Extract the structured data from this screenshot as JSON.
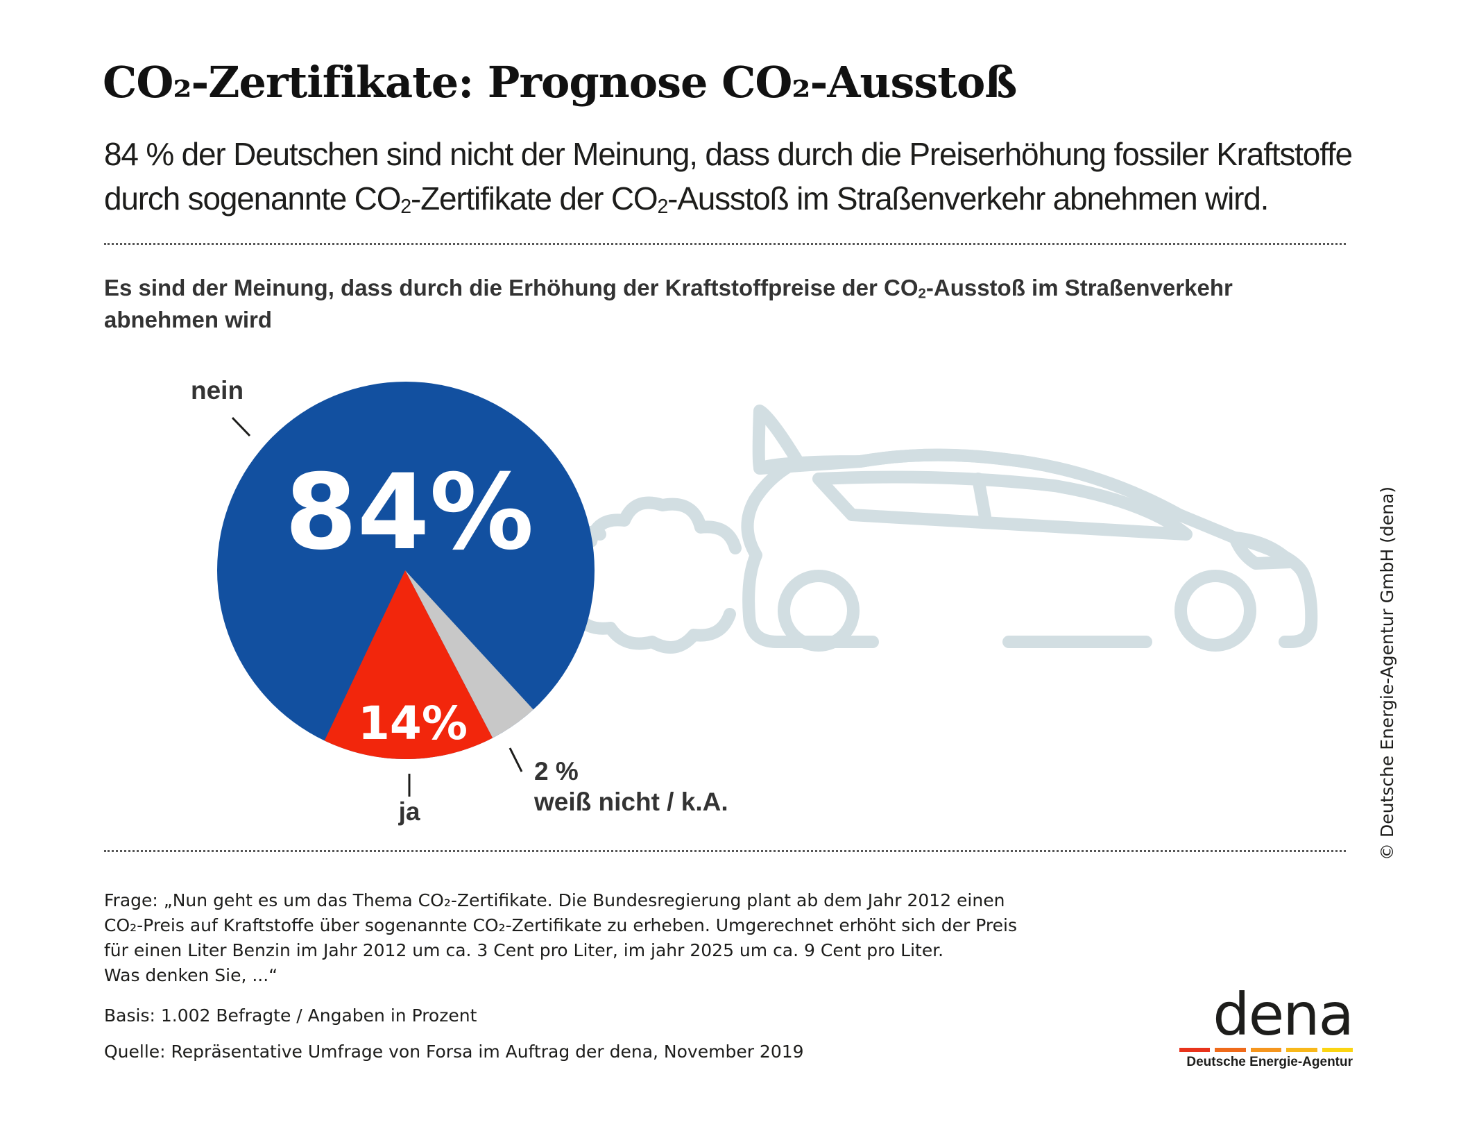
{
  "title": "CO₂-Zertifikate: Prognose CO₂-Ausstoß",
  "subtitle": {
    "part1": "84 % der Deutschen sind nicht der Meinung, dass durch die Preiserhöhung fossiler Kraftstoffe durch sogenannte CO",
    "sub1": "2",
    "part2": "-Zertifikate der CO",
    "sub2": "2",
    "part3": "-Ausstoß im Straßenverkehr abnehmen wird."
  },
  "question": {
    "part1": "Es sind der Meinung, dass durch die Erhöhung der Kraftstoffpreise der CO",
    "sub": "2",
    "part2": "-Ausstoß im Straßenverkehr abnehmen wird"
  },
  "chart_data": {
    "type": "pie",
    "title": "Es sind der Meinung, dass durch die Erhöhung der Kraftstoffpreise der CO2-Ausstoß im Straßenverkehr abnehmen wird",
    "unit": "%",
    "slices": [
      {
        "key": "nein",
        "label": "nein",
        "value": 84,
        "value_label": "84%",
        "color": "#1250a0"
      },
      {
        "key": "ja",
        "label": "ja",
        "value": 14,
        "value_label": "14%",
        "color": "#f2260c"
      },
      {
        "key": "wn",
        "label": "weiß nicht / k.A.",
        "value": 2,
        "value_label": "2 %",
        "color": "#c8c8c8"
      }
    ]
  },
  "colors": {
    "car_outline": "#d2dee2",
    "label_text": "#333333",
    "slice_text": "#ffffff"
  },
  "footer": {
    "question_lines": [
      "Frage: „Nun geht es um das Thema CO₂-Zertifikate. Die Bundesregierung plant ab dem Jahr 2012 einen",
      "CO₂-Preis auf Kraftstoffe über sogenannte CO₂-Zertifikate zu erheben. Umgerechnet erhöht sich der Preis",
      "für einen Liter Benzin im Jahr 2012 um ca. 3 Cent pro Liter, im jahr 2025 um ca. 9 Cent pro Liter.",
      "Was denken Sie, ...“"
    ],
    "basis": "Basis: 1.002 Befragte / Angaben in Prozent",
    "source": "Quelle: Repräsentative Umfrage von Forsa im Auftrag der dena, November 2019"
  },
  "copyright": "© Deutsche Energie-Agentur GmbH (dena)",
  "logo": {
    "word": "dena",
    "subtitle": "Deutsche Energie-Agentur",
    "bar_colors": [
      "#e8331c",
      "#ef6a1a",
      "#f5961e",
      "#f8b81a",
      "#fbd512"
    ]
  }
}
